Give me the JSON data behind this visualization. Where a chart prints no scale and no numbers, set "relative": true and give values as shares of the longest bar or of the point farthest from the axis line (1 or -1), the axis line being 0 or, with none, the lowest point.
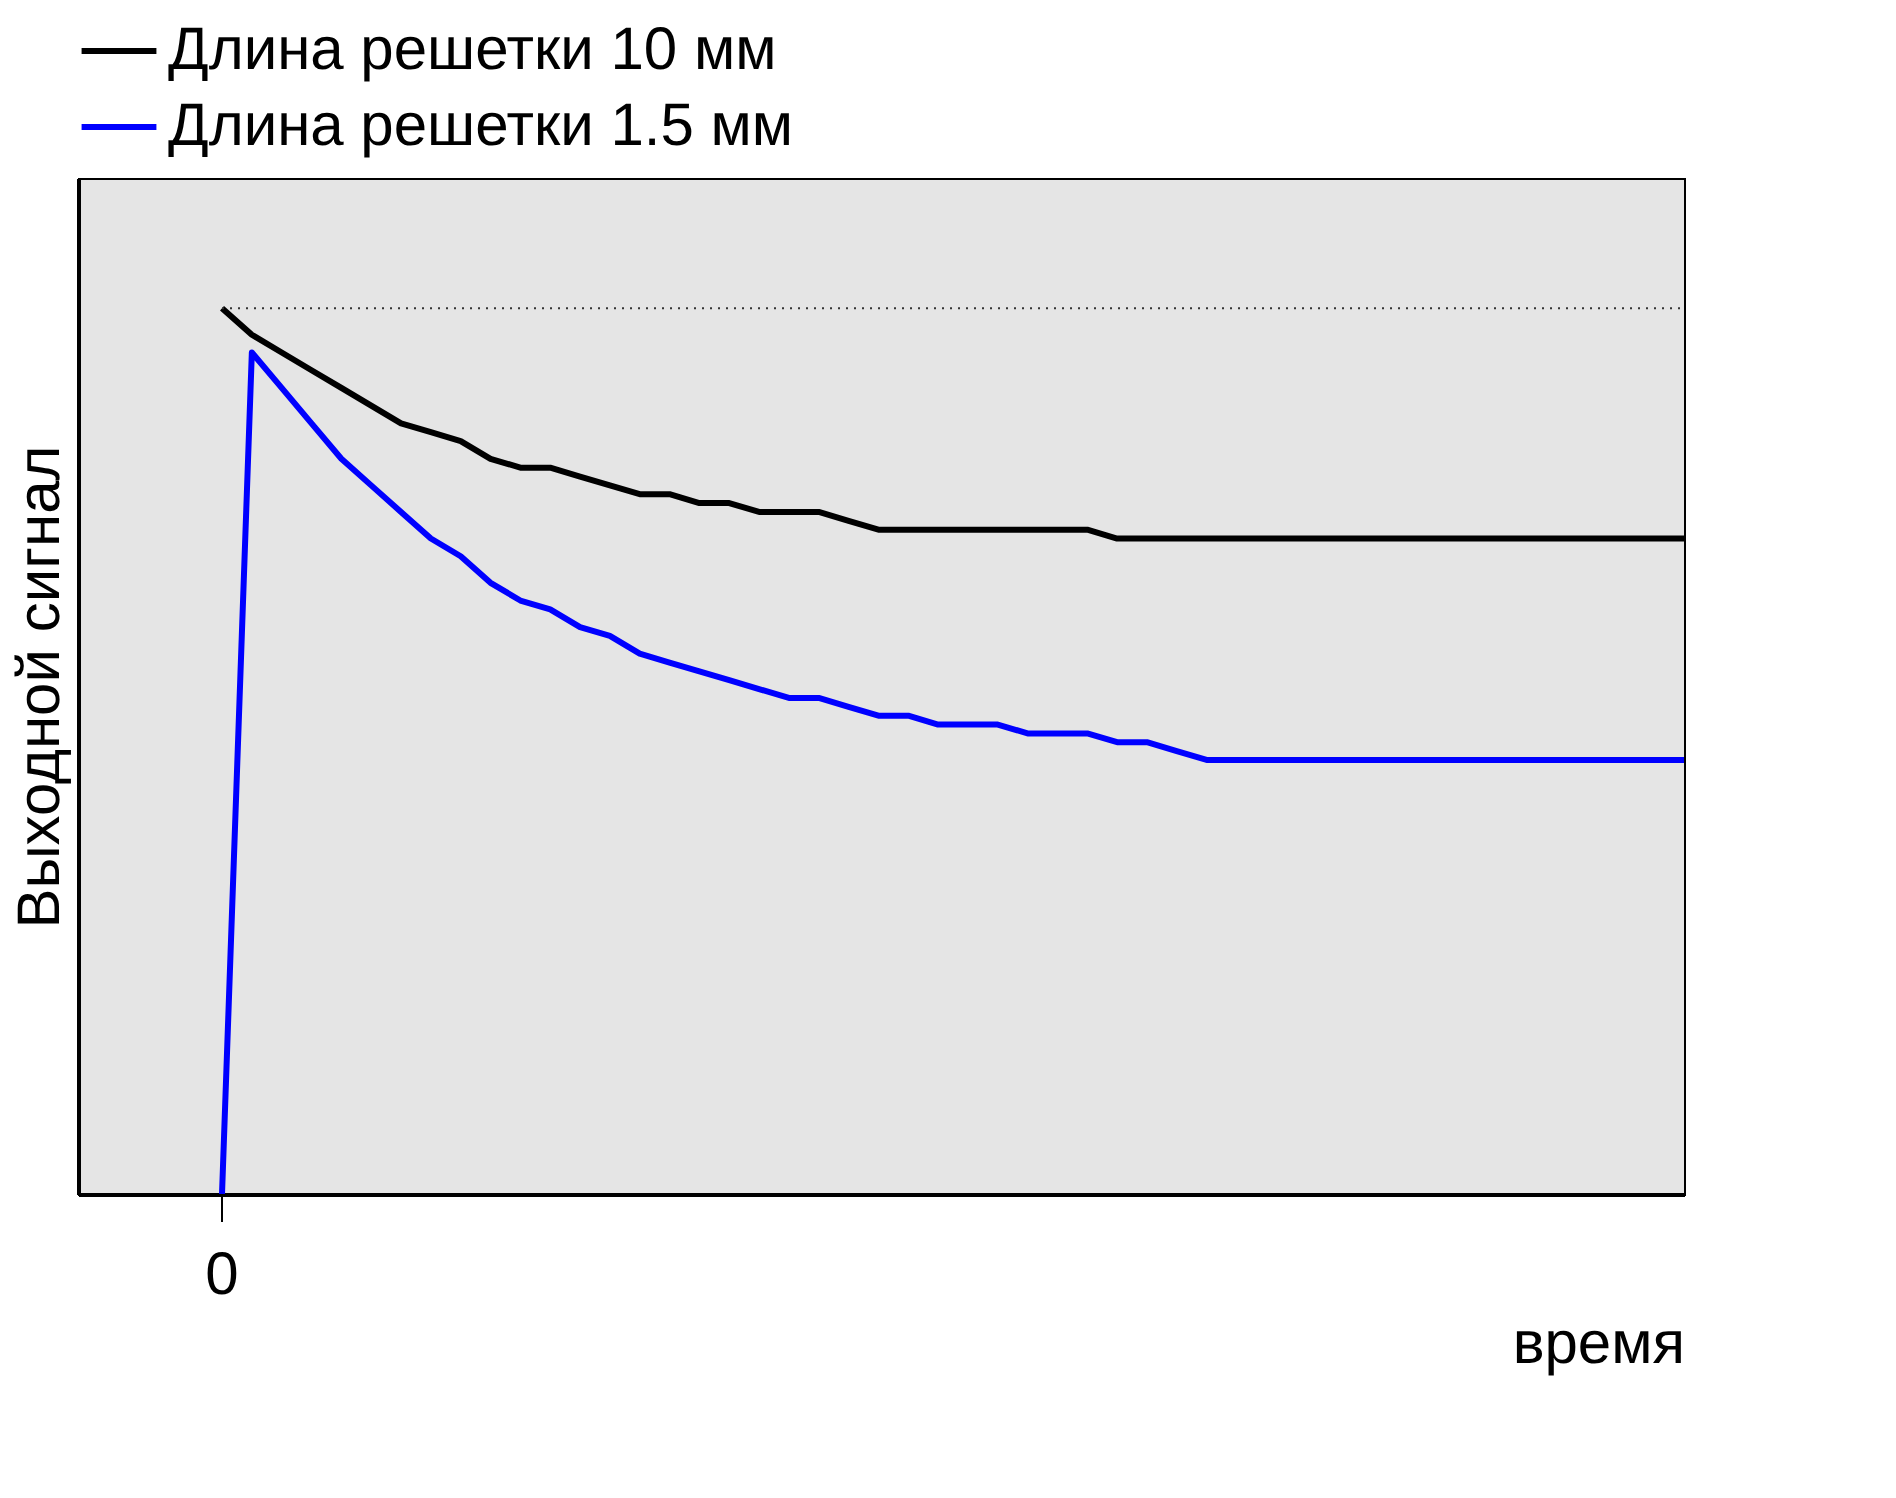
{
  "chart_data": {
    "type": "line",
    "relative": true,
    "xlabel": "время",
    "ylabel": "Выходной сигнал",
    "legend": "top",
    "grid": false,
    "marker": "none",
    "line_style": "solid",
    "annotations": [
      "0"
    ],
    "categories": [
      null,
      null,
      null,
      null,
      null,
      null,
      null,
      null,
      null,
      null,
      null,
      null,
      null,
      null,
      null,
      null,
      null,
      null,
      null,
      null,
      null,
      null,
      null,
      null,
      null,
      null,
      null,
      null,
      null,
      null,
      null,
      null,
      null,
      null,
      null,
      null,
      null,
      null,
      null,
      null,
      null,
      null,
      null,
      null,
      null,
      null,
      null,
      null,
      null,
      null
    ],
    "series": [
      {
        "name": "Длина решетки 10 мм",
        "color": "#000000",
        "values": [
          1,
          0.97,
          0.95,
          0.93,
          0.91,
          0.89,
          0.87,
          0.86,
          0.85,
          0.83,
          0.82,
          0.82,
          0.81,
          0.8,
          0.79,
          0.79,
          0.78,
          0.78,
          0.77,
          0.77,
          0.77,
          0.76,
          0.75,
          0.75,
          0.75,
          0.75,
          0.75,
          0.75,
          0.75,
          0.75,
          0.74,
          0.74,
          0.74,
          0.74,
          0.74,
          0.74,
          0.74,
          0.74,
          0.74,
          0.74,
          0.74,
          0.74,
          0.74,
          0.74,
          0.74,
          0.74,
          0.74,
          0.74,
          0.74,
          0.74
        ]
      },
      {
        "name": "Длина решетки 1.5 мм",
        "color": "#0000ff",
        "values": [
          0,
          0.95,
          0.91,
          0.87,
          0.83,
          0.8,
          0.77,
          0.74,
          0.72,
          0.69,
          0.67,
          0.66,
          0.64,
          0.63,
          0.61,
          0.6,
          0.59,
          0.58,
          0.57,
          0.56,
          0.56,
          0.55,
          0.54,
          0.54,
          0.53,
          0.53,
          0.53,
          0.52,
          0.52,
          0.52,
          0.51,
          0.51,
          0.5,
          0.49,
          0.49,
          0.49,
          0.49,
          0.49,
          0.49,
          0.49,
          0.49,
          0.49,
          0.49,
          0.49,
          0.49,
          0.49,
          0.49,
          0.49,
          0.49,
          0.49
        ]
      }
    ],
    "ref_lines": [
      {
        "axis": "y",
        "value": 1,
        "color": "#333333",
        "line_style": "dotted"
      }
    ]
  }
}
